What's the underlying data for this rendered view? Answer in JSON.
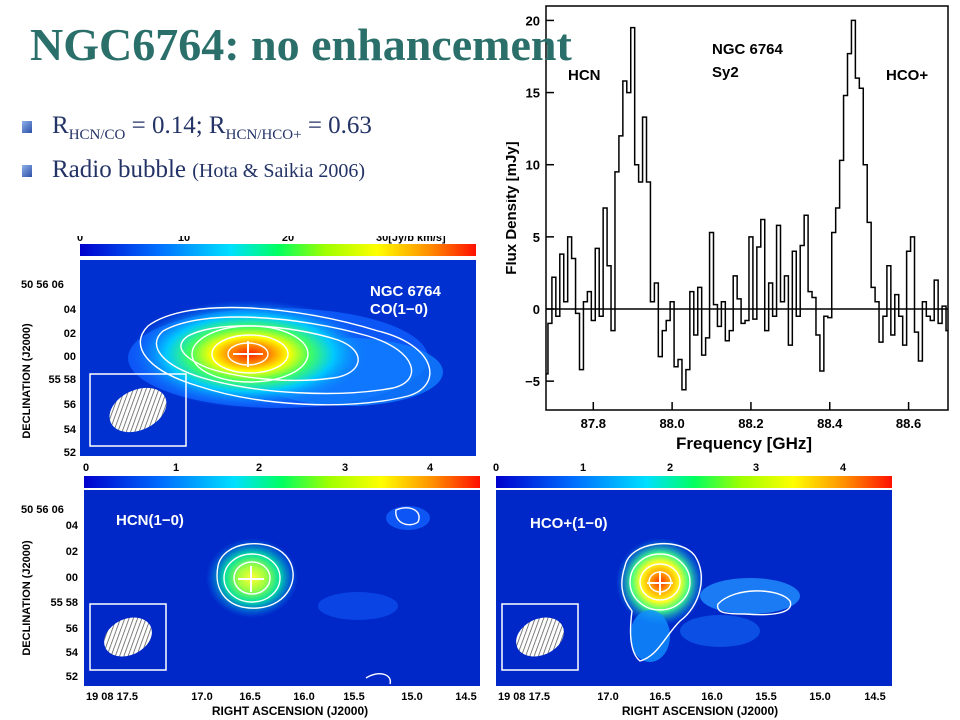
{
  "slide": {
    "title": "NGC6764: no enhancement",
    "bullets": {
      "ratio_r1": "R",
      "ratio_sub1": "HCN/CO",
      "ratio_mid": " = 0.14; R",
      "ratio_sub2": "HCN/HCO+",
      "ratio_end": " = 0.63",
      "bubble_text": "Radio bubble ",
      "bubble_cite": "(Hota & Saikia 2006)"
    }
  },
  "spectrum": {
    "label_galaxy": "NGC 6764",
    "label_type": "Sy2",
    "label_hcn": "HCN",
    "label_hcop": "HCO+",
    "ylabel": "Flux Density [mJy]",
    "xlabel": "Frequency [GHz]",
    "x_ticks": [
      "87.8",
      "88.0",
      "88.2",
      "88.4",
      "88.6"
    ],
    "y_ticks": [
      "20",
      "15",
      "10",
      "5",
      "0",
      "−5"
    ]
  },
  "maps": {
    "co": {
      "scale_ticks": [
        "0",
        "10",
        "20",
        "30[Jy/b km/s]"
      ],
      "label1": "NGC 6764",
      "label2": "CO(1−0)"
    },
    "hcn": {
      "scale_ticks": [
        "0",
        "1",
        "2",
        "3",
        "4"
      ],
      "label": "HCN(1−0)"
    },
    "hcop": {
      "scale_ticks": [
        "0",
        "1",
        "2",
        "3",
        "4"
      ],
      "label": "HCO+(1−0)"
    },
    "dec_label": "DECLINATION (J2000)",
    "ra_label": "RIGHT ASCENSION (J2000)",
    "dec_ticks": [
      "50 56 06",
      "04",
      "02",
      "00",
      "55 58",
      "56",
      "54",
      "52"
    ],
    "ra_ticks": [
      "19 08 17.5",
      "17.0",
      "16.5",
      "16.0",
      "15.5",
      "15.0",
      "14.5"
    ]
  },
  "chart_data": {
    "type": "line",
    "title": "",
    "xlabel": "Frequency [GHz]",
    "ylabel": "Flux Density [mJy]",
    "xlim": [
      87.68,
      88.7
    ],
    "ylim": [
      -7,
      21
    ],
    "series": [
      {
        "x": [
          87.68,
          87.69,
          87.7,
          87.71,
          87.72,
          87.73,
          87.74,
          87.75,
          87.76,
          87.77,
          87.78,
          87.79,
          87.8,
          87.81,
          87.82,
          87.83,
          87.84,
          87.85,
          87.86,
          87.87,
          87.88,
          87.89,
          87.9,
          87.91,
          87.92,
          87.93,
          87.94,
          87.95,
          87.96,
          87.97,
          87.98,
          87.99,
          88.0,
          88.01,
          88.02,
          88.03,
          88.04,
          88.05,
          88.06,
          88.07,
          88.08,
          88.09,
          88.1,
          88.11,
          88.12,
          88.13,
          88.14,
          88.15,
          88.16,
          88.17,
          88.18,
          88.19,
          88.2,
          88.21,
          88.22,
          88.23,
          88.24,
          88.25,
          88.26,
          88.27,
          88.28,
          88.29,
          88.3,
          88.31,
          88.32,
          88.33,
          88.34,
          88.35,
          88.36,
          88.37,
          88.38,
          88.39,
          88.4,
          88.41,
          88.42,
          88.43,
          88.44,
          88.45,
          88.46,
          88.47,
          88.48,
          88.49,
          88.5,
          88.51,
          88.52,
          88.53,
          88.54,
          88.55,
          88.56,
          88.57,
          88.58,
          88.59,
          88.6,
          88.61,
          88.62,
          88.63,
          88.64,
          88.65,
          88.66,
          88.67,
          88.68,
          88.69,
          88.7
        ],
        "values": [
          -4.5,
          -1,
          2.2,
          -0.5,
          3.8,
          0.5,
          5,
          3.5,
          -0.3,
          -4.2,
          0.5,
          1.2,
          -0.8,
          4.2,
          -0.5,
          7,
          3,
          -1.5,
          9.5,
          12,
          15.8,
          15,
          19.5,
          10,
          8.8,
          13.3,
          8.8,
          0.5,
          1.8,
          -3.3,
          -1.5,
          -0.8,
          0.5,
          -4,
          -3.5,
          -5.6,
          -4.2,
          1.2,
          -1.8,
          1.5,
          -3.2,
          -2,
          5.3,
          0.3,
          -1.2,
          0.5,
          -2.2,
          -1.5,
          2.3,
          0.7,
          -1,
          -0.8,
          5,
          -0.7,
          4.3,
          6.2,
          -1.5,
          1.8,
          -0.5,
          5.8,
          0.5,
          2.3,
          -2.5,
          4,
          -0.5,
          4.4,
          6.5,
          1.2,
          0.8,
          -1.8,
          -4.3,
          -0.5,
          -0.6,
          5.3,
          7,
          10.3,
          14.8,
          17.7,
          20,
          16,
          15.3,
          10,
          6,
          1.5,
          0.5,
          -2.3,
          -0.5,
          3,
          -1.8,
          1,
          -0.5,
          -2.5,
          4,
          5,
          -1.6,
          -3.6,
          0.5,
          -0.5,
          -0.8,
          2,
          -1,
          0.2,
          -1.5
        ]
      }
    ],
    "annotations": [
      "NGC 6764",
      "Sy2",
      "HCN",
      "HCO+"
    ],
    "grid": false
  }
}
